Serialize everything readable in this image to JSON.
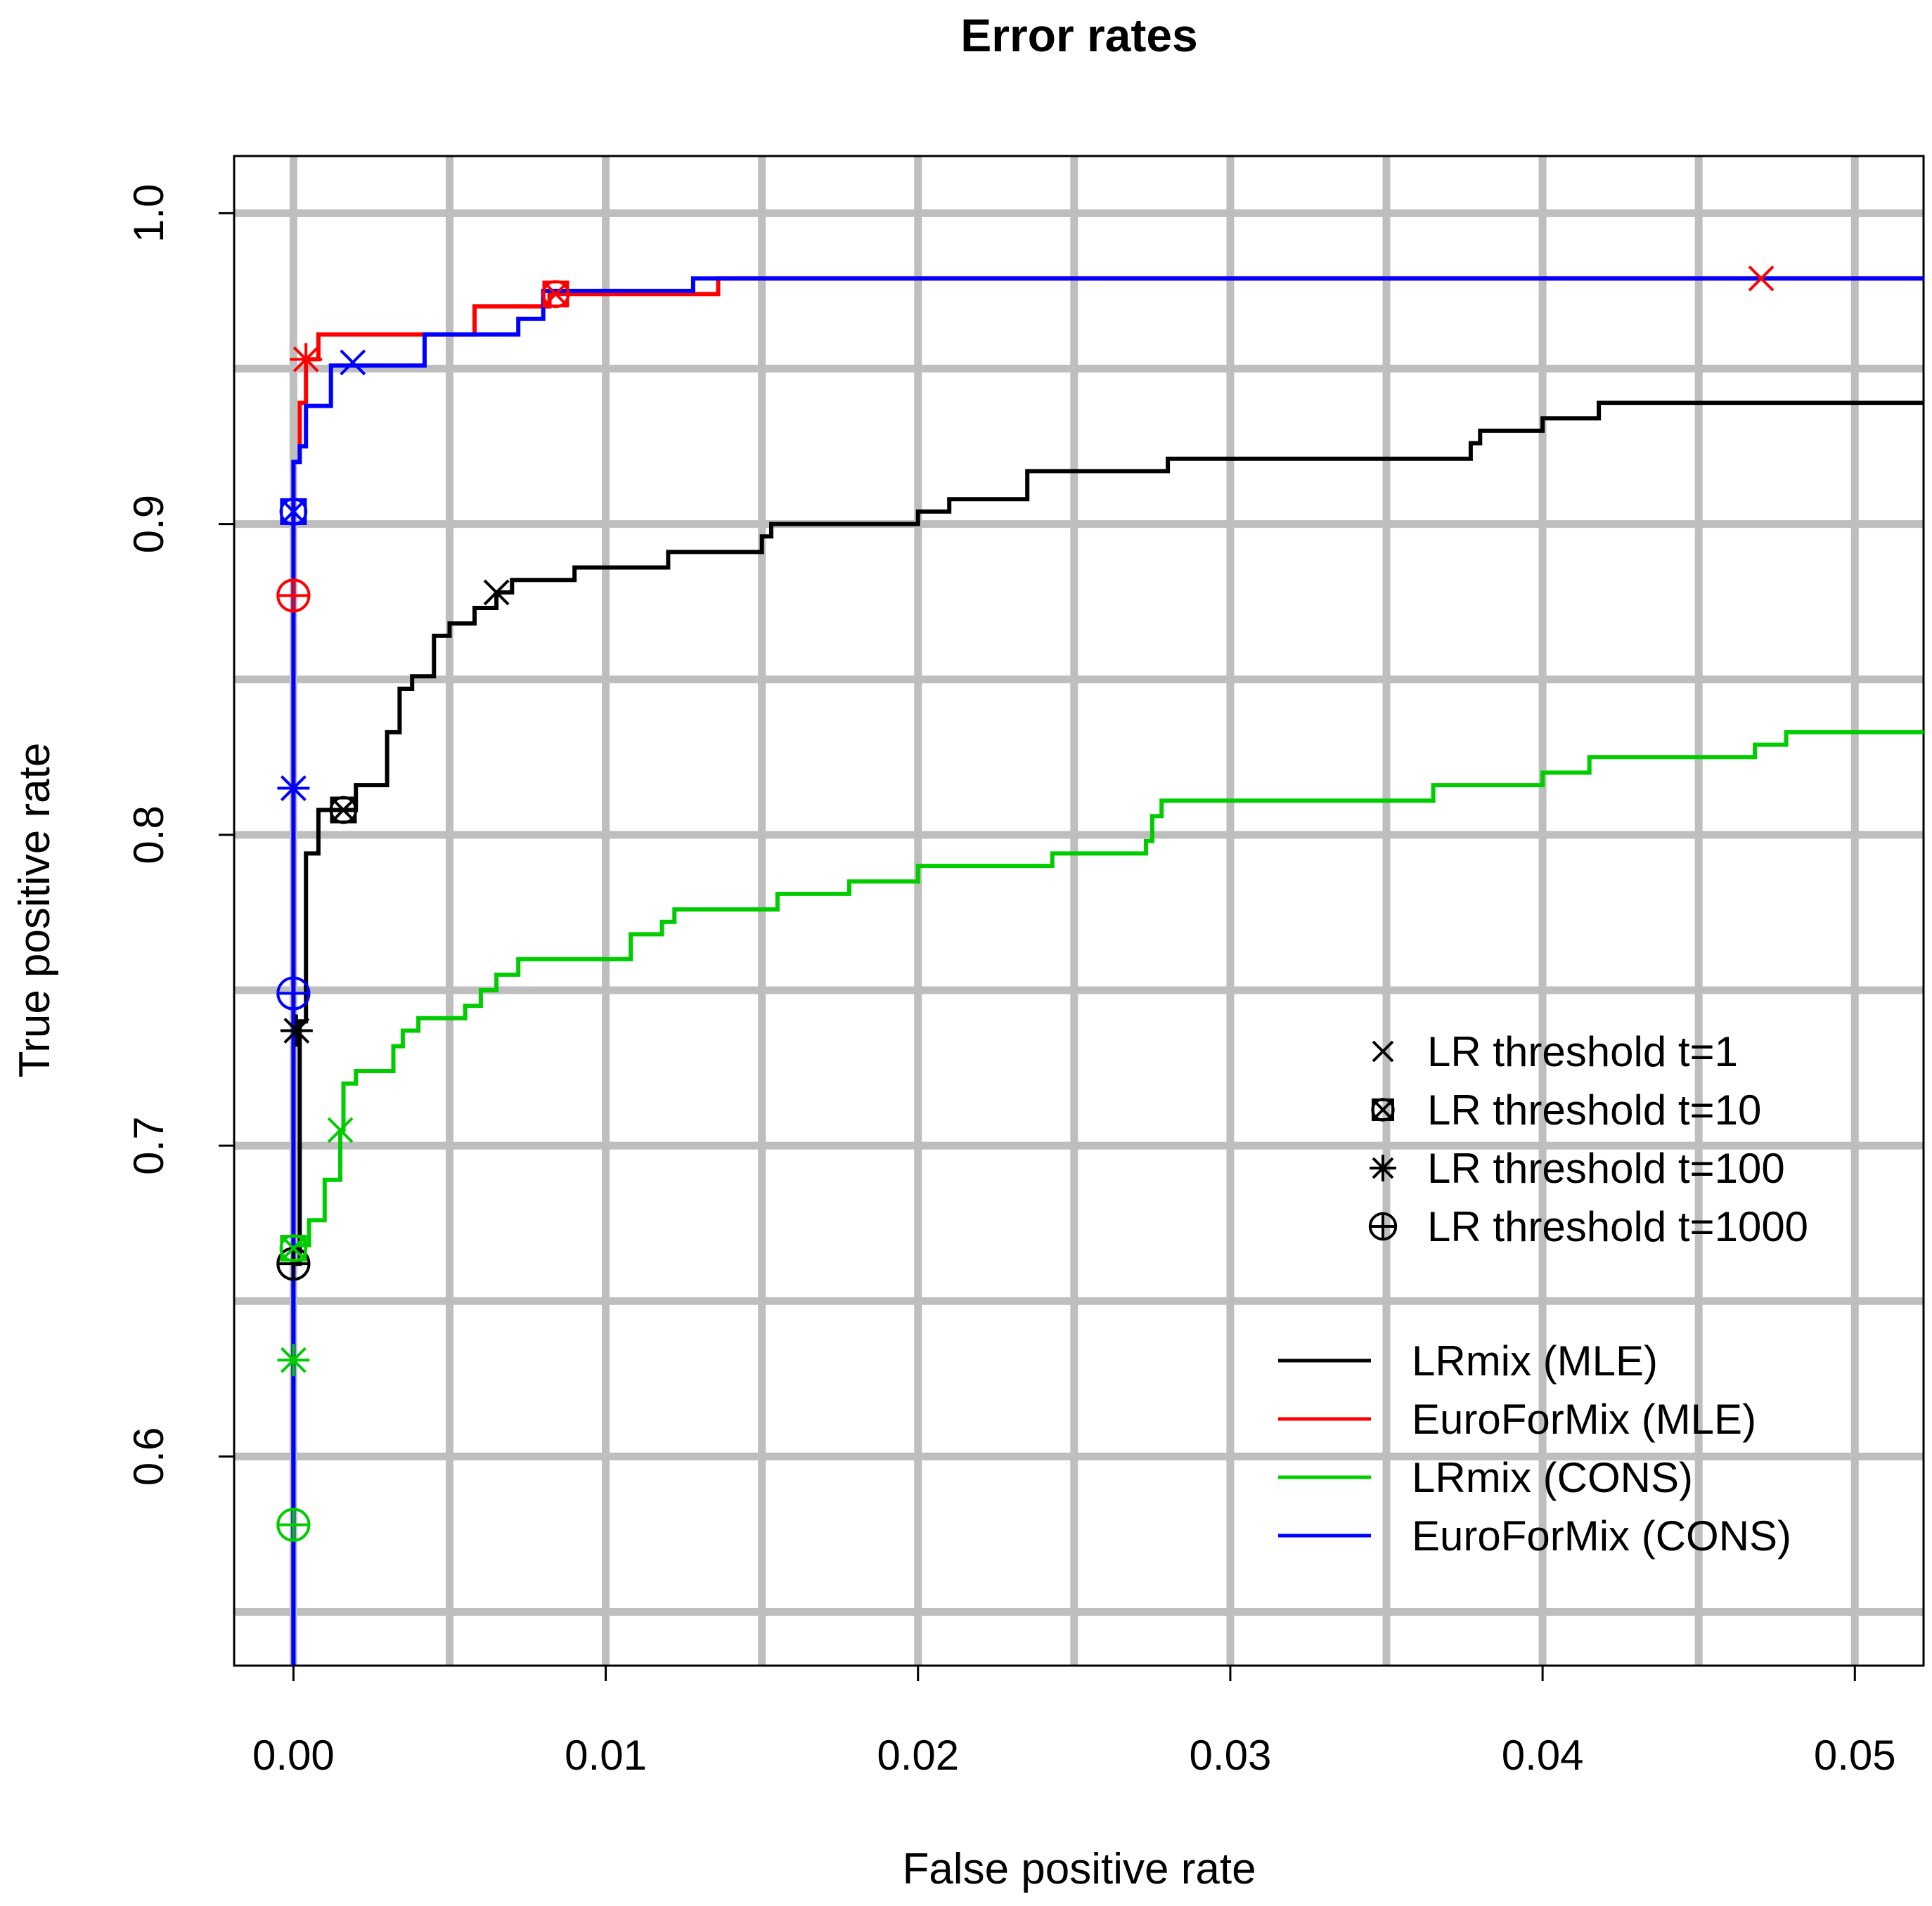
{
  "chart_data": {
    "type": "line",
    "title": "Error rates",
    "xlabel": "False positive rate",
    "ylabel": "True positive rate",
    "xlim": [
      -0.0019,
      0.0522
    ],
    "ylim": [
      0.5327,
      1.0184
    ],
    "xticks": [
      0.0,
      0.01,
      0.02,
      0.03,
      0.04,
      0.05
    ],
    "xtick_labels": [
      "0.00",
      "0.01",
      "0.02",
      "0.03",
      "0.04",
      "0.05"
    ],
    "yticks": [
      0.6,
      0.7,
      0.8,
      0.9,
      1.0
    ],
    "ytick_labels": [
      "0.6",
      "0.7",
      "0.8",
      "0.9",
      "1.0"
    ],
    "grid": true,
    "grid_x": [
      0.0,
      0.005,
      0.01,
      0.015,
      0.02,
      0.025,
      0.03,
      0.035,
      0.04,
      0.045,
      0.05
    ],
    "grid_y": [
      0.55,
      0.6,
      0.65,
      0.7,
      0.75,
      0.8,
      0.85,
      0.9,
      0.95,
      1.0
    ],
    "legend_position": "bottom-right",
    "marker_legend": [
      {
        "symbol": "cross",
        "label": "LR threshold t=1"
      },
      {
        "symbol": "boxed-cross",
        "label": "LR threshold t=10"
      },
      {
        "symbol": "asterisk",
        "label": "LR threshold t=100"
      },
      {
        "symbol": "circle-plus",
        "label": "LR threshold t=1000"
      }
    ],
    "series": [
      {
        "name": "LRmix (MLE)",
        "color": "#000000",
        "points": [
          [
            0.0,
            0.53
          ],
          [
            0.0,
            0.662
          ],
          [
            0.0002,
            0.74
          ],
          [
            0.0004,
            0.745
          ],
          [
            0.0004,
            0.794
          ],
          [
            0.0008,
            0.808
          ],
          [
            0.002,
            0.816
          ],
          [
            0.003,
            0.833
          ],
          [
            0.0034,
            0.847
          ],
          [
            0.0038,
            0.851
          ],
          [
            0.0045,
            0.864
          ],
          [
            0.005,
            0.868
          ],
          [
            0.0058,
            0.873
          ],
          [
            0.0065,
            0.878
          ],
          [
            0.007,
            0.882
          ],
          [
            0.009,
            0.886
          ],
          [
            0.012,
            0.891
          ],
          [
            0.015,
            0.896
          ],
          [
            0.0153,
            0.9
          ],
          [
            0.02,
            0.904
          ],
          [
            0.021,
            0.908
          ],
          [
            0.0235,
            0.917
          ],
          [
            0.028,
            0.921
          ],
          [
            0.0377,
            0.926
          ],
          [
            0.038,
            0.93
          ],
          [
            0.04,
            0.934
          ],
          [
            0.0418,
            0.939
          ],
          [
            0.0522,
            0.939
          ]
        ],
        "markers": [
          {
            "symbol": "cross",
            "x": 0.0065,
            "y": 0.878
          },
          {
            "symbol": "boxed-cross",
            "x": 0.0016,
            "y": 0.808
          },
          {
            "symbol": "asterisk",
            "x": 0.0001,
            "y": 0.737
          },
          {
            "symbol": "circle-plus",
            "x": 0.0,
            "y": 0.662
          }
        ]
      },
      {
        "name": "EuroForMix (MLE)",
        "color": "#ff0000",
        "points": [
          [
            0.0,
            0.53
          ],
          [
            0.0,
            0.92
          ],
          [
            0.0002,
            0.939
          ],
          [
            0.0004,
            0.953
          ],
          [
            0.0008,
            0.961
          ],
          [
            0.0058,
            0.97
          ],
          [
            0.0082,
            0.974
          ],
          [
            0.013,
            0.974
          ],
          [
            0.0136,
            0.979
          ],
          [
            0.0522,
            0.979
          ]
        ],
        "markers": [
          {
            "symbol": "cross",
            "x": 0.047,
            "y": 0.979
          },
          {
            "symbol": "boxed-cross",
            "x": 0.0084,
            "y": 0.974
          },
          {
            "symbol": "asterisk",
            "x": 0.0004,
            "y": 0.953
          },
          {
            "symbol": "circle-plus",
            "x": 0.0,
            "y": 0.877
          }
        ]
      },
      {
        "name": "LRmix (CONS)",
        "color": "#00cc00",
        "points": [
          [
            0.0,
            0.53
          ],
          [
            0.0,
            0.668
          ],
          [
            0.0005,
            0.676
          ],
          [
            0.001,
            0.689
          ],
          [
            0.0015,
            0.705
          ],
          [
            0.0016,
            0.72
          ],
          [
            0.002,
            0.724
          ],
          [
            0.0032,
            0.732
          ],
          [
            0.0035,
            0.737
          ],
          [
            0.004,
            0.741
          ],
          [
            0.0055,
            0.745
          ],
          [
            0.006,
            0.75
          ],
          [
            0.0065,
            0.755
          ],
          [
            0.0072,
            0.76
          ],
          [
            0.0108,
            0.768
          ],
          [
            0.0118,
            0.772
          ],
          [
            0.0122,
            0.776
          ],
          [
            0.0155,
            0.781
          ],
          [
            0.0178,
            0.785
          ],
          [
            0.02,
            0.79
          ],
          [
            0.0243,
            0.794
          ],
          [
            0.0273,
            0.798
          ],
          [
            0.0275,
            0.806
          ],
          [
            0.0278,
            0.811
          ],
          [
            0.0365,
            0.816
          ],
          [
            0.04,
            0.82
          ],
          [
            0.0415,
            0.825
          ],
          [
            0.0468,
            0.829
          ],
          [
            0.0478,
            0.833
          ],
          [
            0.0522,
            0.833
          ]
        ],
        "markers": [
          {
            "symbol": "cross",
            "x": 0.0015,
            "y": 0.705
          },
          {
            "symbol": "boxed-cross",
            "x": 0.0,
            "y": 0.667
          },
          {
            "symbol": "asterisk",
            "x": 0.0,
            "y": 0.631
          },
          {
            "symbol": "circle-plus",
            "x": 0.0,
            "y": 0.578
          }
        ]
      },
      {
        "name": "EuroForMix (CONS)",
        "color": "#0000ff",
        "points": [
          [
            0.0,
            0.53
          ],
          [
            0.0,
            0.92
          ],
          [
            0.0002,
            0.925
          ],
          [
            0.0004,
            0.938
          ],
          [
            0.0012,
            0.951
          ],
          [
            0.0042,
            0.961
          ],
          [
            0.0072,
            0.966
          ],
          [
            0.008,
            0.975
          ],
          [
            0.0128,
            0.979
          ],
          [
            0.0522,
            0.979
          ]
        ],
        "markers": [
          {
            "symbol": "cross",
            "x": 0.0019,
            "y": 0.952
          },
          {
            "symbol": "boxed-cross",
            "x": 0.0,
            "y": 0.904
          },
          {
            "symbol": "asterisk",
            "x": 0.0,
            "y": 0.815
          },
          {
            "symbol": "circle-plus",
            "x": 0.0,
            "y": 0.749
          }
        ]
      }
    ]
  }
}
